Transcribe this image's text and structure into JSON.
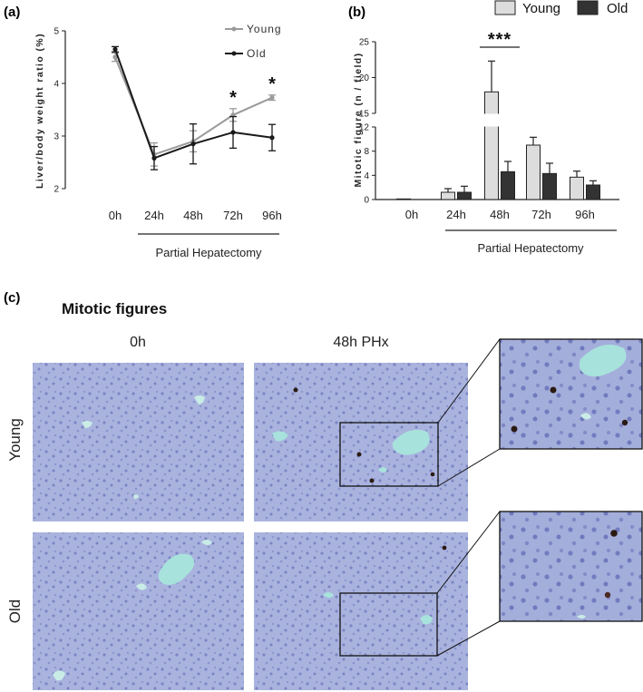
{
  "panel_a": {
    "label": "(a)"
  },
  "panel_b": {
    "label": "(b)"
  },
  "panel_c": {
    "label": "(c)",
    "title": "Mitotic figures",
    "col_0h": "0h",
    "col_48h": "48h PHx",
    "row_young": "Young",
    "row_old": "Old"
  },
  "colors": {
    "young_line": "#9a9a9a",
    "old_line": "#1a1a1a",
    "young_bar": "#dddddd",
    "old_bar": "#333333",
    "tissue": "#a6b0dc",
    "vessel": "#a8e2dc",
    "nucleus": "#2b1a14"
  },
  "chart_data": [
    {
      "type": "line",
      "panel": "(a)",
      "xlabel": "Partial Hepatectomy",
      "ylabel": "Liver/body weight ratio (%)",
      "categories": [
        "0h",
        "24h",
        "48h",
        "72h",
        "96h"
      ],
      "ylim": [
        2,
        5
      ],
      "yticks": [
        "2",
        "3",
        "4",
        "5"
      ],
      "legend_position": "top-right",
      "series": [
        {
          "name": "Young",
          "values": [
            4.5,
            2.65,
            2.9,
            3.4,
            3.73
          ],
          "errors": [
            0.08,
            0.22,
            0.2,
            0.12,
            0.05
          ]
        },
        {
          "name": "Old",
          "values": [
            4.65,
            2.58,
            2.85,
            3.07,
            2.97
          ],
          "errors": [
            0.05,
            0.22,
            0.38,
            0.3,
            0.25
          ]
        }
      ],
      "significance": [
        {
          "category": "72h",
          "label": "*"
        },
        {
          "category": "96h",
          "label": "*"
        }
      ]
    },
    {
      "type": "bar",
      "panel": "(b)",
      "xlabel": "Partial Hepatectomy",
      "ylabel": "Mitotic figure (n / field)",
      "categories": [
        "0h",
        "24h",
        "48h",
        "72h",
        "96h"
      ],
      "ylim": [
        0,
        25
      ],
      "axis_break": [
        12,
        15
      ],
      "yticks": [
        "0",
        "4",
        "8",
        "12",
        "15",
        "20",
        "25"
      ],
      "legend_position": "top",
      "series": [
        {
          "name": "Young",
          "values": [
            0.1,
            1.2,
            18,
            9,
            3.7
          ],
          "errors": [
            0,
            0.6,
            4.3,
            1.3,
            1.0
          ]
        },
        {
          "name": "Old",
          "values": [
            0,
            1.2,
            4.6,
            4.3,
            2.4
          ],
          "errors": [
            0,
            1.0,
            1.7,
            1.7,
            0.7
          ]
        }
      ],
      "significance": [
        {
          "category": "48h",
          "label": "***"
        }
      ]
    }
  ]
}
